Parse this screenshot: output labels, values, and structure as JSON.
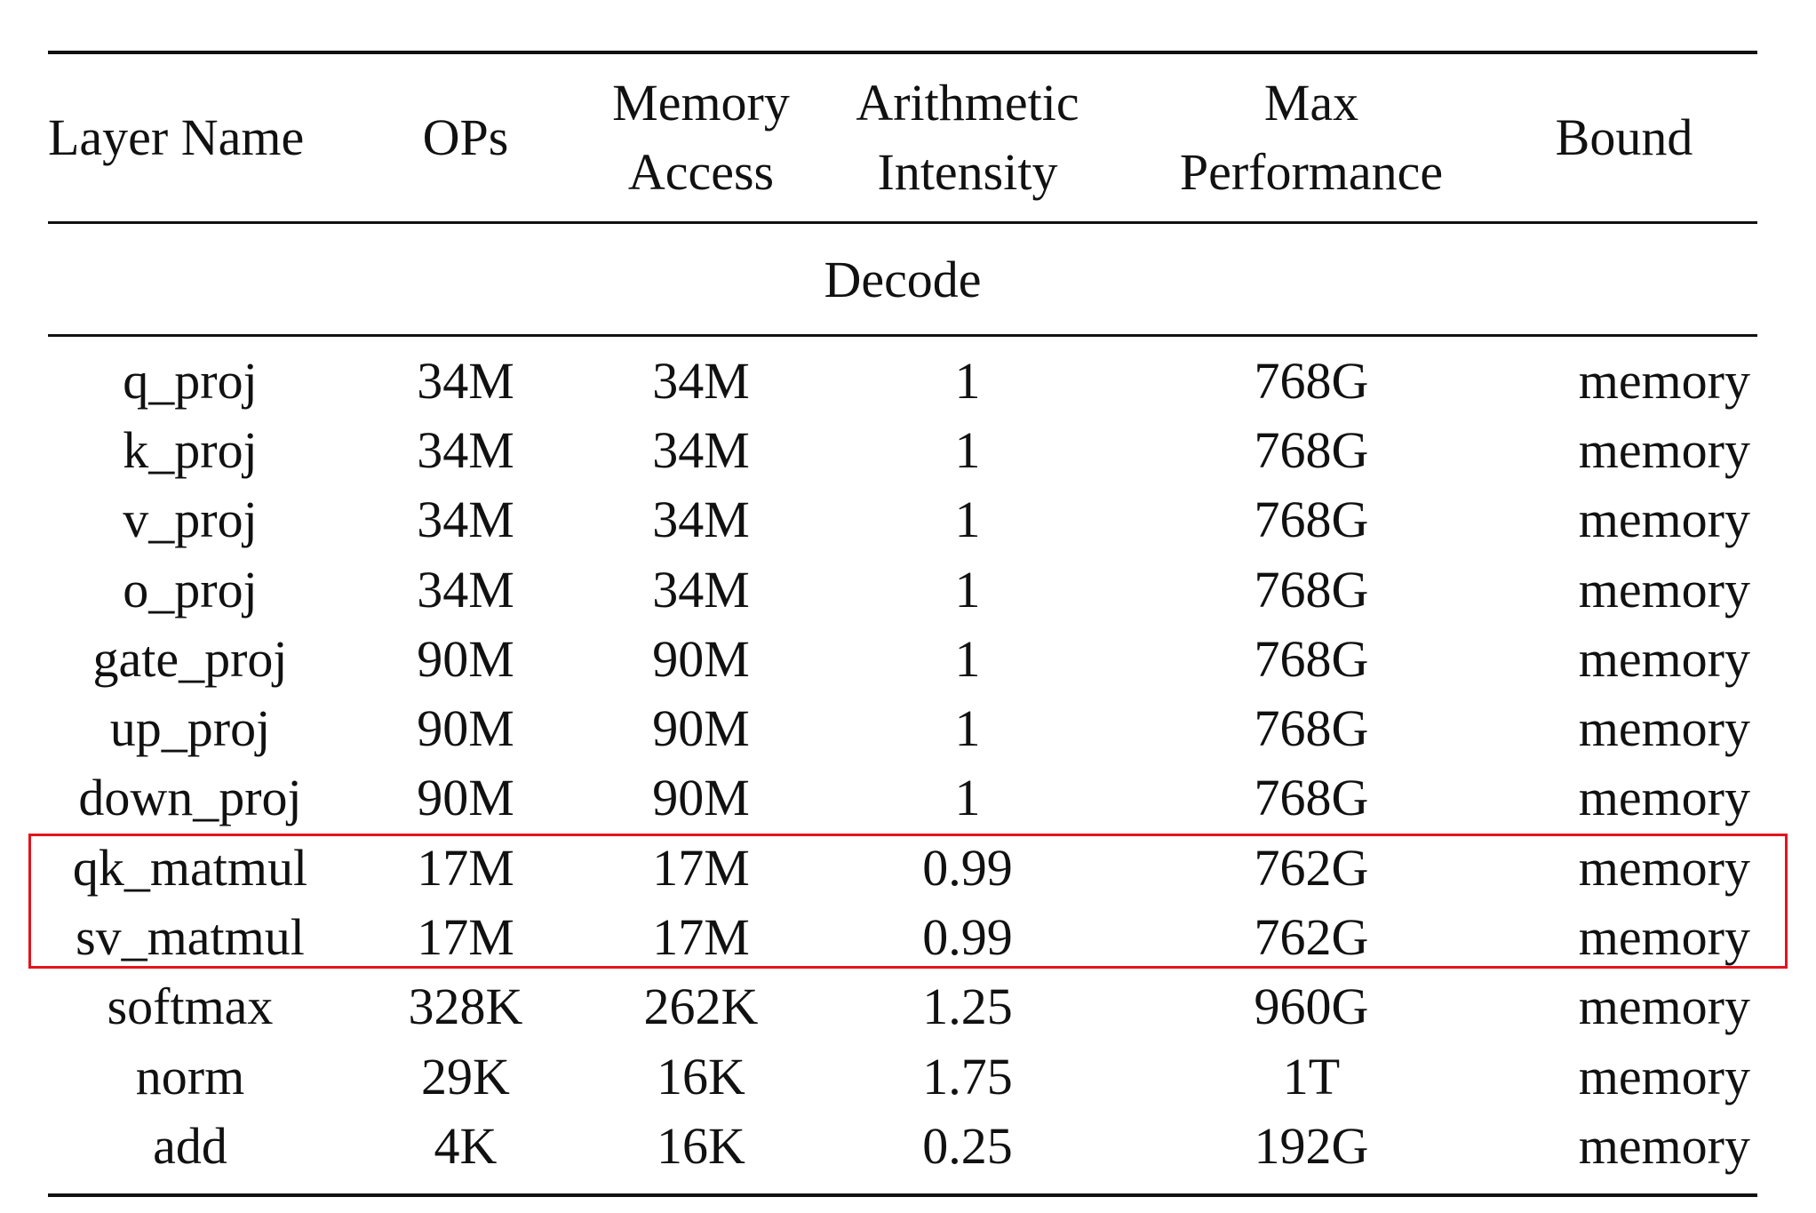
{
  "header": {
    "col_layer": "Layer Name",
    "col_ops": "OPs",
    "col_mem_line1": "Memory",
    "col_mem_line2": "Access",
    "col_ai_line1": "Arithmetic",
    "col_ai_line2": "Intensity",
    "col_perf_line1": "Max",
    "col_perf_line2": "Performance",
    "col_bound": "Bound"
  },
  "section": {
    "label": "Decode"
  },
  "rows": [
    {
      "layer": "q_proj",
      "ops": "34M",
      "memory_access": "34M",
      "arithmetic_intensity": "1",
      "max_performance": "768G",
      "bound": "memory"
    },
    {
      "layer": "k_proj",
      "ops": "34M",
      "memory_access": "34M",
      "arithmetic_intensity": "1",
      "max_performance": "768G",
      "bound": "memory"
    },
    {
      "layer": "v_proj",
      "ops": "34M",
      "memory_access": "34M",
      "arithmetic_intensity": "1",
      "max_performance": "768G",
      "bound": "memory"
    },
    {
      "layer": "o_proj",
      "ops": "34M",
      "memory_access": "34M",
      "arithmetic_intensity": "1",
      "max_performance": "768G",
      "bound": "memory"
    },
    {
      "layer": "gate_proj",
      "ops": "90M",
      "memory_access": "90M",
      "arithmetic_intensity": "1",
      "max_performance": "768G",
      "bound": "memory"
    },
    {
      "layer": "up_proj",
      "ops": "90M",
      "memory_access": "90M",
      "arithmetic_intensity": "1",
      "max_performance": "768G",
      "bound": "memory"
    },
    {
      "layer": "down_proj",
      "ops": "90M",
      "memory_access": "90M",
      "arithmetic_intensity": "1",
      "max_performance": "768G",
      "bound": "memory"
    },
    {
      "layer": "qk_matmul",
      "ops": "17M",
      "memory_access": "17M",
      "arithmetic_intensity": "0.99",
      "max_performance": "762G",
      "bound": "memory"
    },
    {
      "layer": "sv_matmul",
      "ops": "17M",
      "memory_access": "17M",
      "arithmetic_intensity": "0.99",
      "max_performance": "762G",
      "bound": "memory"
    },
    {
      "layer": "softmax",
      "ops": "328K",
      "memory_access": "262K",
      "arithmetic_intensity": "1.25",
      "max_performance": "960G",
      "bound": "memory"
    },
    {
      "layer": "norm",
      "ops": "29K",
      "memory_access": "16K",
      "arithmetic_intensity": "1.75",
      "max_performance": "1T",
      "bound": "memory"
    },
    {
      "layer": "add",
      "ops": "4K",
      "memory_access": "16K",
      "arithmetic_intensity": "0.25",
      "max_performance": "192G",
      "bound": "memory"
    }
  ],
  "highlight": {
    "color": "#e3141c",
    "rows": [
      "qk_matmul",
      "sv_matmul"
    ]
  }
}
